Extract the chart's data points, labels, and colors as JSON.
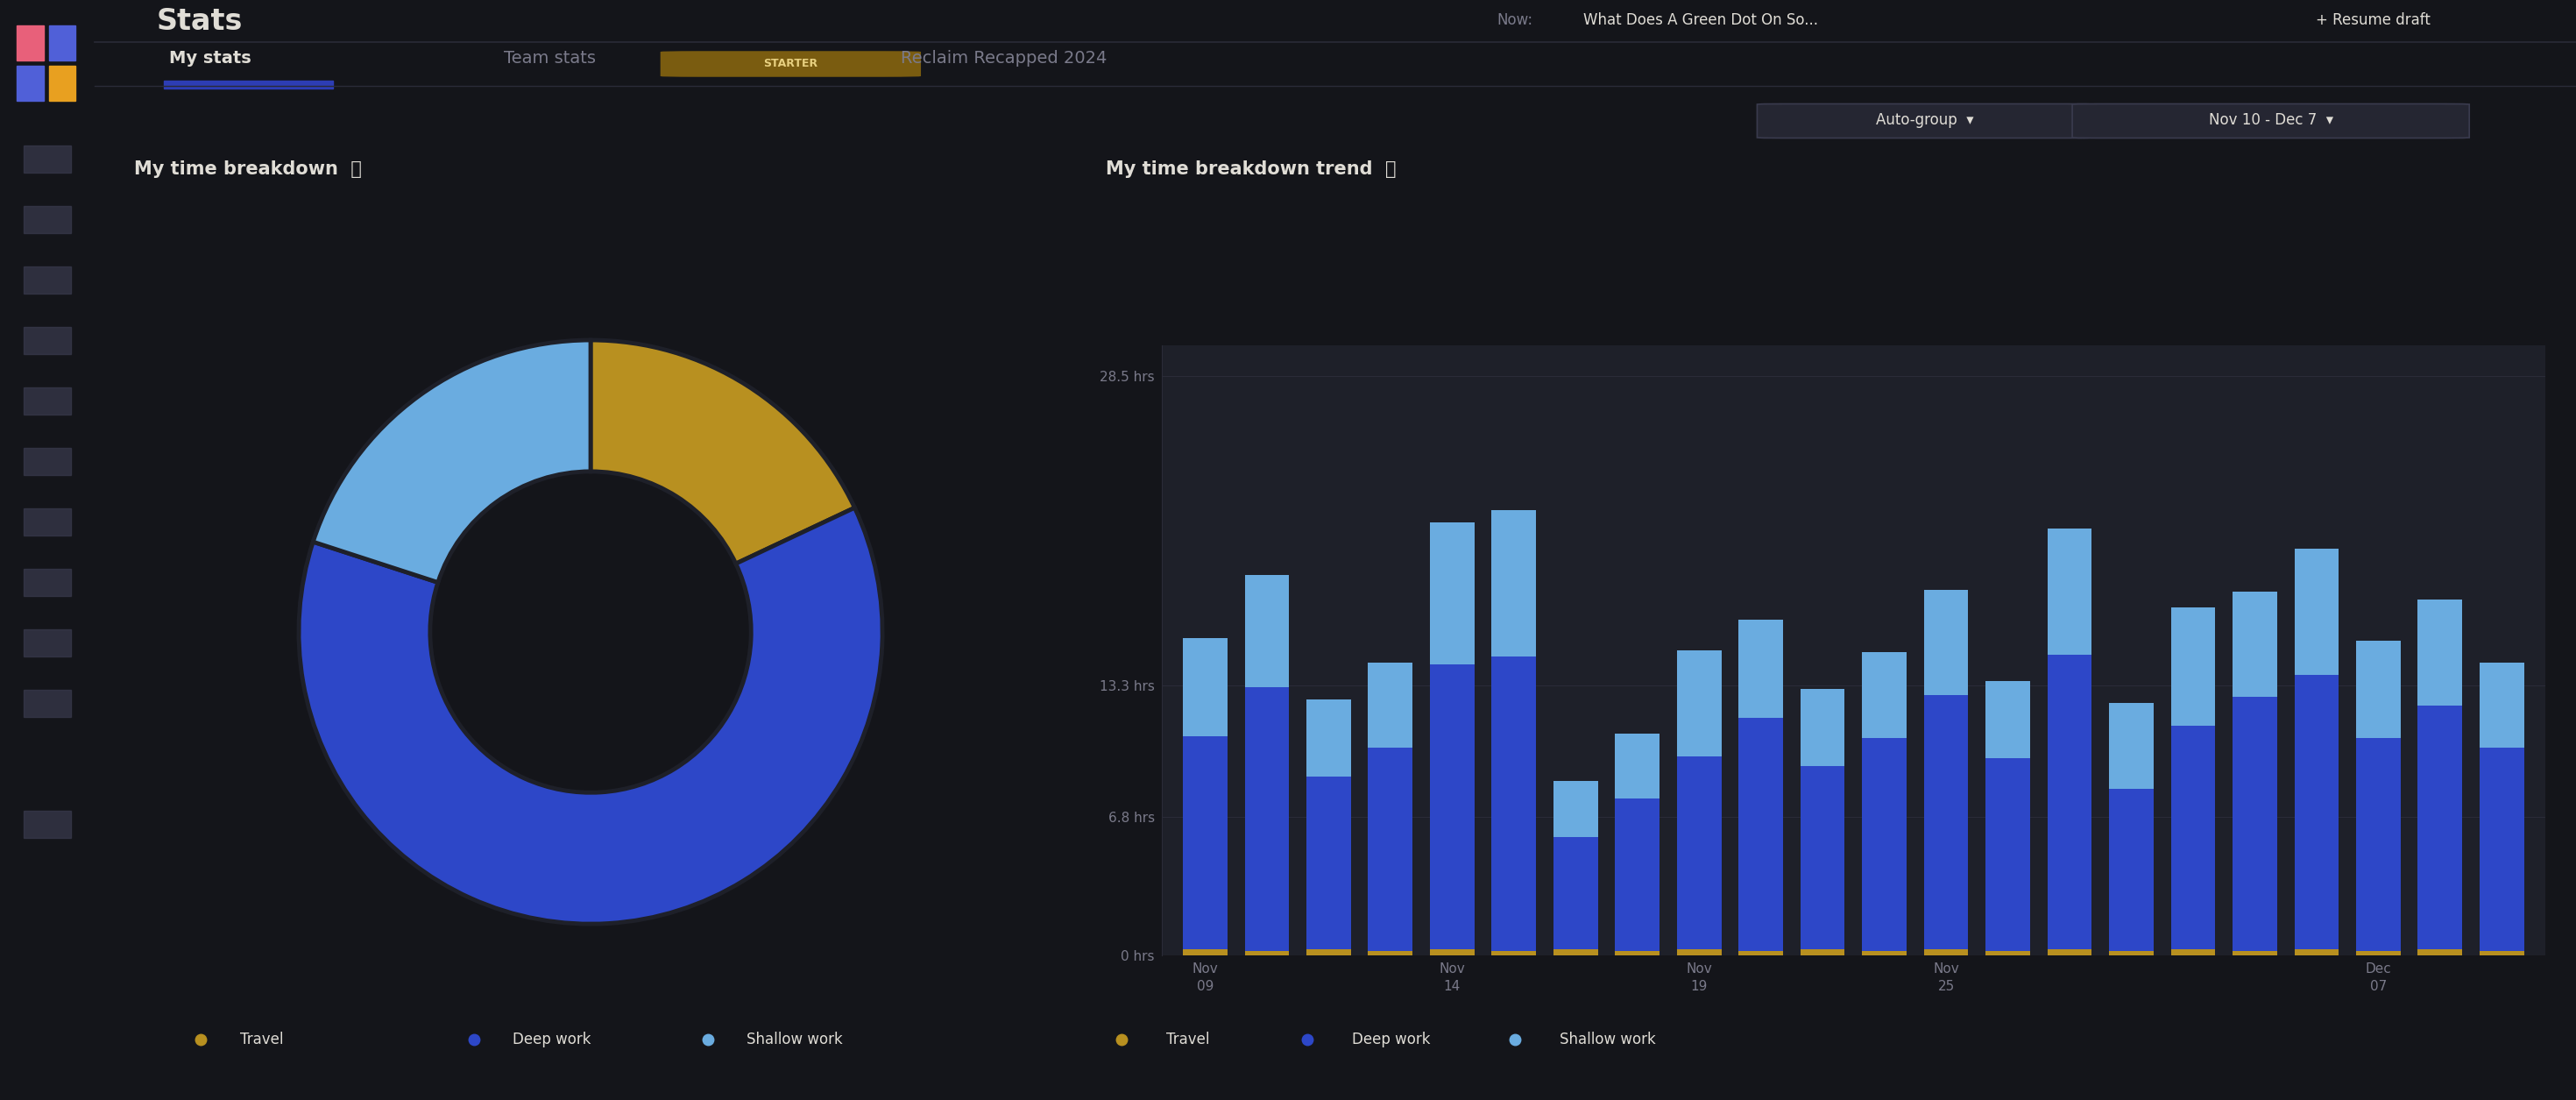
{
  "bg_color": "#14151a",
  "sidebar_color": "#1b1c24",
  "panel_color": "#1e2029",
  "text_color": "#e0ddd6",
  "muted_color": "#7a7a8a",
  "dim_color": "#555566",
  "title": "Stats",
  "tabs": [
    "My stats",
    "Team stats",
    "Reclaim Recapped 2024"
  ],
  "active_tab_color": "#e0ddd6",
  "inactive_tab_color": "#7a7a8a",
  "tab_underline_color": "#2d3db4",
  "starter_badge_bg": "#7a5c10",
  "starter_badge_text": "#e8d080",
  "nav_filter_label": "Auto-group",
  "date_filter_label": "Nov 10 - Dec 7",
  "filter_btn_bg": "#252632",
  "filter_btn_border": "#3a3b4e",
  "section1_title": "My time breakdown",
  "section2_title": "My time breakdown trend",
  "donut_colors": [
    "#b89020",
    "#2d47c8",
    "#6aace0"
  ],
  "donut_slices": [
    0.18,
    0.62,
    0.2
  ],
  "donut_labels": [
    "Travel",
    "Deep work",
    "Shallow work"
  ],
  "bar_colors_travel": "#b89020",
  "bar_colors_deep": "#2d47c8",
  "bar_colors_shallow": "#6aace0",
  "y_labels": [
    "0 hrs",
    "6.8 hrs",
    "13.3 hrs",
    "28.5 hrs"
  ],
  "y_values": [
    0,
    6.8,
    13.3,
    28.5
  ],
  "bars": [
    {
      "travel": 0.3,
      "deep": 10.5,
      "shallow": 4.8
    },
    {
      "travel": 0.2,
      "deep": 13.0,
      "shallow": 5.5
    },
    {
      "travel": 0.3,
      "deep": 8.5,
      "shallow": 3.8
    },
    {
      "travel": 0.2,
      "deep": 10.0,
      "shallow": 4.2
    },
    {
      "travel": 0.3,
      "deep": 14.0,
      "shallow": 7.0
    },
    {
      "travel": 0.2,
      "deep": 14.5,
      "shallow": 7.2
    },
    {
      "travel": 0.3,
      "deep": 5.5,
      "shallow": 2.8
    },
    {
      "travel": 0.2,
      "deep": 7.5,
      "shallow": 3.2
    },
    {
      "travel": 0.3,
      "deep": 9.5,
      "shallow": 5.2
    },
    {
      "travel": 0.2,
      "deep": 11.5,
      "shallow": 4.8
    },
    {
      "travel": 0.3,
      "deep": 9.0,
      "shallow": 3.8
    },
    {
      "travel": 0.2,
      "deep": 10.5,
      "shallow": 4.2
    },
    {
      "travel": 0.3,
      "deep": 12.5,
      "shallow": 5.2
    },
    {
      "travel": 0.2,
      "deep": 9.5,
      "shallow": 3.8
    },
    {
      "travel": 0.3,
      "deep": 14.5,
      "shallow": 6.2
    },
    {
      "travel": 0.2,
      "deep": 8.0,
      "shallow": 4.2
    },
    {
      "travel": 0.3,
      "deep": 11.0,
      "shallow": 5.8
    },
    {
      "travel": 0.2,
      "deep": 12.5,
      "shallow": 5.2
    },
    {
      "travel": 0.3,
      "deep": 13.5,
      "shallow": 6.2
    },
    {
      "travel": 0.2,
      "deep": 10.5,
      "shallow": 4.8
    },
    {
      "travel": 0.3,
      "deep": 12.0,
      "shallow": 5.2
    },
    {
      "travel": 0.2,
      "deep": 10.0,
      "shallow": 4.2
    }
  ],
  "x_tick_positions": [
    0,
    4,
    8,
    12,
    19
  ],
  "x_tick_labels": [
    "Nov\n09",
    "Nov\n14",
    "Nov\n19",
    "Nov\n25",
    "Dec\n07"
  ],
  "grid_color": "#2a2b38",
  "now_label": "Now:",
  "now_text": "What Does A Green Dot On So...",
  "resume_label": "+ Resume draft",
  "sidebar_icon_color": "#3a3b4e"
}
